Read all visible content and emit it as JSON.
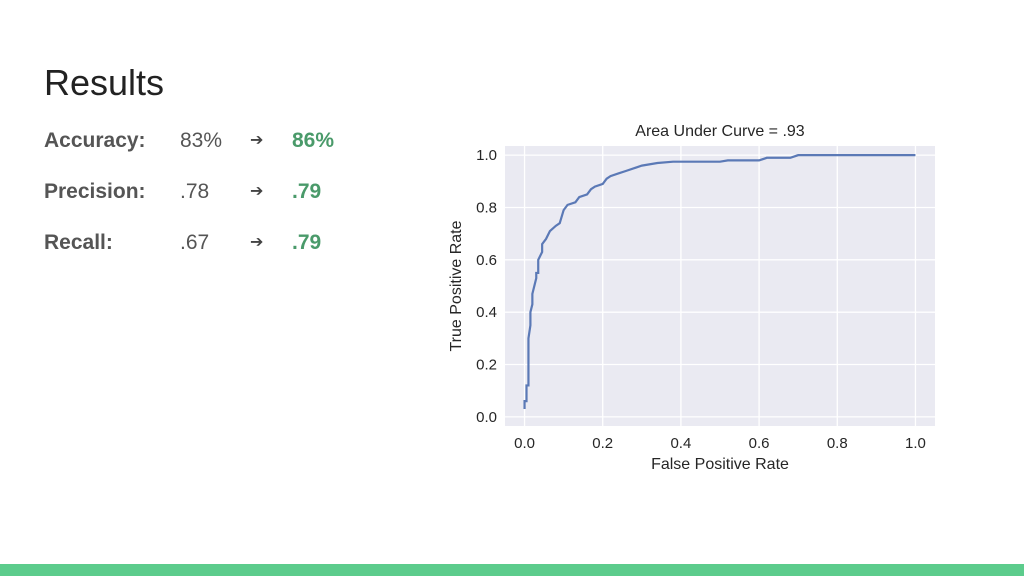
{
  "slide": {
    "title": "Results"
  },
  "metrics": [
    {
      "label": "Accuracy:",
      "before": "83%",
      "arrow": "➔",
      "after": "86%"
    },
    {
      "label": "Precision:",
      "before": ".78",
      "arrow": "➔",
      "after": ".79"
    },
    {
      "label": "Recall:",
      "before": ".67",
      "arrow": "➔",
      "after": ".79"
    }
  ],
  "colors": {
    "improved_value": "#4a9a6a",
    "accent_bar": "#5ccc8c",
    "curve": "#5b79b6",
    "plot_bg": "#eaeaf2"
  },
  "chart_data": {
    "type": "line",
    "title": "Area Under Curve = .93",
    "xlabel": "False Positive Rate",
    "ylabel": "True Positive Rate",
    "xlim": [
      0.0,
      1.0
    ],
    "ylim": [
      0.0,
      1.0
    ],
    "xticks": [
      "0.0",
      "0.2",
      "0.4",
      "0.6",
      "0.8",
      "1.0"
    ],
    "yticks": [
      "0.0",
      "0.2",
      "0.4",
      "0.6",
      "0.8",
      "1.0"
    ],
    "grid": true,
    "series": [
      {
        "x": [
          0.0,
          0.0,
          0.005,
          0.005,
          0.01,
          0.01,
          0.015,
          0.015,
          0.02,
          0.02,
          0.025,
          0.03,
          0.03,
          0.035,
          0.035,
          0.045,
          0.045,
          0.055,
          0.065,
          0.08,
          0.09,
          0.1,
          0.11,
          0.13,
          0.14,
          0.16,
          0.17,
          0.18,
          0.2,
          0.21,
          0.22,
          0.24,
          0.26,
          0.3,
          0.34,
          0.38,
          0.5,
          0.52,
          0.6,
          0.62,
          0.68,
          0.7,
          1.0
        ],
        "y": [
          0.03,
          0.06,
          0.06,
          0.12,
          0.12,
          0.3,
          0.35,
          0.4,
          0.43,
          0.47,
          0.5,
          0.53,
          0.55,
          0.55,
          0.6,
          0.63,
          0.66,
          0.68,
          0.71,
          0.73,
          0.74,
          0.79,
          0.81,
          0.82,
          0.84,
          0.85,
          0.87,
          0.88,
          0.89,
          0.91,
          0.92,
          0.93,
          0.94,
          0.96,
          0.97,
          0.975,
          0.975,
          0.98,
          0.98,
          0.99,
          0.99,
          1.0,
          1.0
        ]
      }
    ]
  }
}
